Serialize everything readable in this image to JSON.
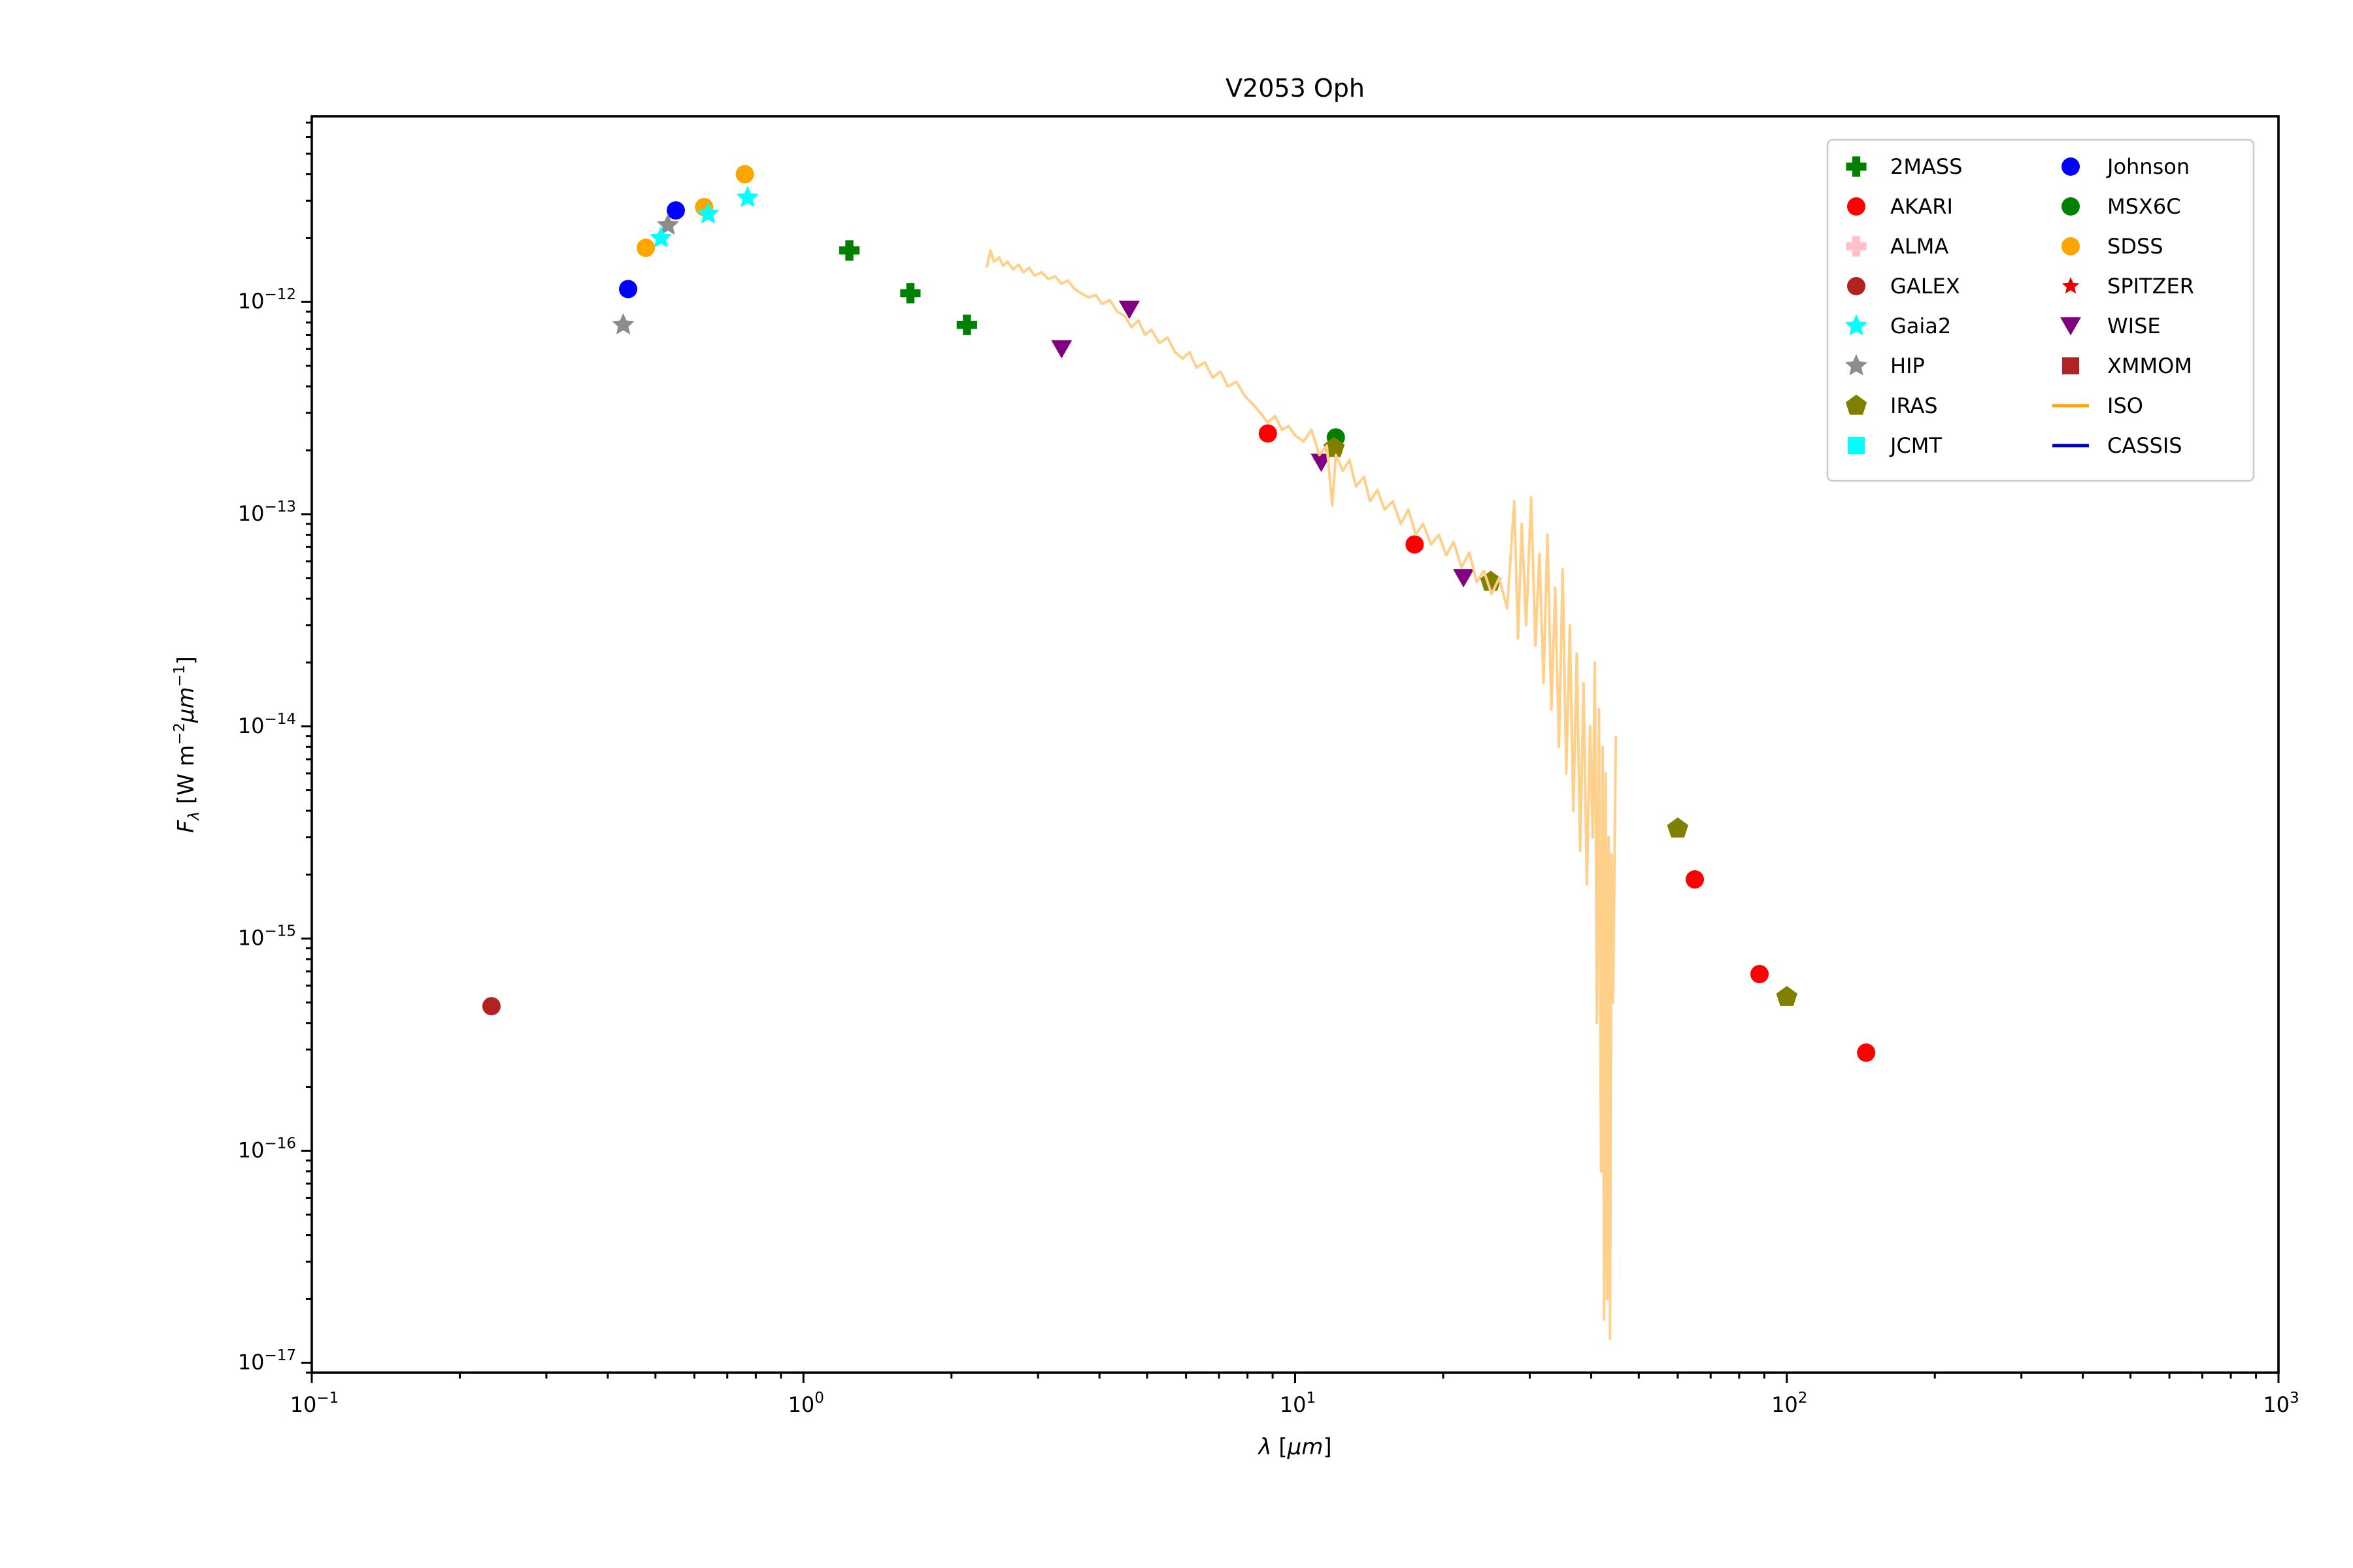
{
  "figure": {
    "background": "#ffffff"
  },
  "chart_data": {
    "type": "scatter",
    "title": "V2053 Oph",
    "xlabel": "λ [μm]",
    "ylabel": "F_λ [W m^-2 μm^-1]",
    "xlabel_parts": [
      {
        "t": "λ",
        "i": true
      },
      {
        "t": " ["
      },
      {
        "t": "μm",
        "i": true
      },
      {
        "t": "]"
      }
    ],
    "ylabel_parts": [
      {
        "t": "F",
        "i": true
      },
      {
        "t": "λ",
        "i": true,
        "pos": "sub"
      },
      {
        "t": " [W m"
      },
      {
        "t": "−2",
        "pos": "sup"
      },
      {
        "t": "μm",
        "i": true
      },
      {
        "t": "−1",
        "pos": "sup"
      },
      {
        "t": "]"
      }
    ],
    "xlim": [
      0.1,
      1000
    ],
    "ylim": [
      9e-18,
      7.5e-12
    ],
    "x_tick_exponents": [
      -1,
      0,
      1,
      2,
      3
    ],
    "y_tick_exponents": [
      -12,
      -13,
      -14,
      -15,
      -16,
      -17
    ],
    "grid": false,
    "legend_position": "upper right",
    "legend_columns": 2,
    "series": [
      {
        "name": "2MASS",
        "marker": "plus",
        "color": "#008000",
        "z": 5,
        "points": [
          [
            1.24,
            1.75e-12
          ],
          [
            1.65,
            1.1e-12
          ],
          [
            2.15,
            7.8e-13
          ]
        ]
      },
      {
        "name": "AKARI",
        "marker": "circle",
        "color": "#ff0000",
        "z": 8,
        "points": [
          [
            8.8,
            2.4e-13
          ],
          [
            17.5,
            7.2e-14
          ],
          [
            65,
            1.9e-15
          ],
          [
            88,
            6.8e-16
          ],
          [
            145,
            2.9e-16
          ]
        ]
      },
      {
        "name": "ALMA",
        "marker": "plus",
        "color": "#ffc0cb",
        "z": 1,
        "points": []
      },
      {
        "name": "GALEX",
        "marker": "circle",
        "color": "#b22222",
        "z": 5,
        "points": [
          [
            0.232,
            4.8e-16
          ]
        ]
      },
      {
        "name": "Gaia2",
        "marker": "star",
        "color": "#00ffff",
        "z": 5,
        "points": [
          [
            0.513,
            2e-12
          ],
          [
            0.64,
            2.6e-12
          ],
          [
            0.77,
            3.1e-12
          ]
        ]
      },
      {
        "name": "HIP",
        "marker": "star",
        "color": "#8c8c8c",
        "z": 4,
        "points": [
          [
            0.43,
            7.8e-13
          ],
          [
            0.53,
            2.3e-12
          ]
        ]
      },
      {
        "name": "IRAS",
        "marker": "pentagon",
        "color": "#808000",
        "z": 9,
        "points": [
          [
            12,
            2.05e-13
          ],
          [
            25,
            4.8e-14
          ],
          [
            60,
            3.3e-15
          ],
          [
            100,
            5.3e-16
          ]
        ]
      },
      {
        "name": "JCMT",
        "marker": "square",
        "color": "#00ffff",
        "z": 1,
        "points": []
      },
      {
        "name": "Johnson",
        "marker": "circle",
        "color": "#0000ff",
        "z": 2,
        "points": [
          [
            0.44,
            1.15e-12
          ],
          [
            0.55,
            2.7e-12
          ]
        ]
      },
      {
        "name": "MSX6C",
        "marker": "circle",
        "color": "#008000",
        "z": 6,
        "points": [
          [
            12.1,
            2.3e-13
          ]
        ]
      },
      {
        "name": "SDSS",
        "marker": "circle",
        "color": "#ffa500",
        "z": 3,
        "points": [
          [
            0.478,
            1.8e-12
          ],
          [
            0.628,
            2.8e-12
          ],
          [
            0.76,
            4e-12
          ]
        ]
      },
      {
        "name": "SPITZER",
        "marker": "star-small",
        "color": "#e60000",
        "z": 1,
        "points": []
      },
      {
        "name": "WISE",
        "marker": "triangle-down",
        "color": "#800080",
        "z": 7,
        "points": [
          [
            3.35,
            6e-13
          ],
          [
            4.6,
            9.2e-13
          ],
          [
            11.3,
            1.75e-13
          ],
          [
            22,
            5e-14
          ]
        ]
      },
      {
        "name": "XMMOM",
        "marker": "square",
        "color": "#b22222",
        "z": 1,
        "points": []
      },
      {
        "name": "ISO",
        "marker": "line",
        "color": "#ffd08a",
        "legend_color": "#ffa500",
        "z": 10,
        "points": [
          [
            2.36,
            1.45e-12
          ],
          [
            2.4,
            1.75e-12
          ],
          [
            2.44,
            1.55e-12
          ],
          [
            2.5,
            1.62e-12
          ],
          [
            2.55,
            1.48e-12
          ],
          [
            2.6,
            1.55e-12
          ],
          [
            2.67,
            1.42e-12
          ],
          [
            2.74,
            1.5e-12
          ],
          [
            2.8,
            1.38e-12
          ],
          [
            2.88,
            1.45e-12
          ],
          [
            2.95,
            1.33e-12
          ],
          [
            3.05,
            1.38e-12
          ],
          [
            3.15,
            1.28e-12
          ],
          [
            3.25,
            1.32e-12
          ],
          [
            3.35,
            1.22e-12
          ],
          [
            3.45,
            1.26e-12
          ],
          [
            3.55,
            1.16e-12
          ],
          [
            3.67,
            1.1e-12
          ],
          [
            3.8,
            1.05e-12
          ],
          [
            3.93,
            1.08e-12
          ],
          [
            4.05,
            9.8e-13
          ],
          [
            4.2,
            1.02e-12
          ],
          [
            4.35,
            9e-13
          ],
          [
            4.5,
            8.6e-13
          ],
          [
            4.65,
            7.6e-13
          ],
          [
            4.8,
            8.2e-13
          ],
          [
            4.95,
            7e-13
          ],
          [
            5.1,
            7.4e-13
          ],
          [
            5.3,
            6.4e-13
          ],
          [
            5.5,
            6.8e-13
          ],
          [
            5.7,
            5.8e-13
          ],
          [
            5.9,
            5.4e-13
          ],
          [
            6.1,
            5.8e-13
          ],
          [
            6.3,
            4.9e-13
          ],
          [
            6.55,
            5.2e-13
          ],
          [
            6.8,
            4.4e-13
          ],
          [
            7.05,
            4.7e-13
          ],
          [
            7.3,
            4e-13
          ],
          [
            7.6,
            4.2e-13
          ],
          [
            7.9,
            3.6e-13
          ],
          [
            8.2,
            3.3e-13
          ],
          [
            8.5,
            3e-13
          ],
          [
            8.8,
            2.7e-13
          ],
          [
            9.1,
            2.9e-13
          ],
          [
            9.4,
            2.5e-13
          ],
          [
            9.7,
            2.6e-13
          ],
          [
            10.0,
            2.35e-13
          ],
          [
            10.4,
            2.2e-13
          ],
          [
            10.8,
            2.5e-13
          ],
          [
            11.2,
            1.9e-13
          ],
          [
            11.6,
            2.1e-13
          ],
          [
            11.9,
            1.1e-13
          ],
          [
            12.1,
            1.9e-13
          ],
          [
            12.5,
            1.6e-13
          ],
          [
            12.9,
            1.8e-13
          ],
          [
            13.3,
            1.35e-13
          ],
          [
            13.8,
            1.5e-13
          ],
          [
            14.2,
            1.15e-13
          ],
          [
            14.7,
            1.3e-13
          ],
          [
            15.2,
            1.05e-13
          ],
          [
            15.8,
            1.15e-13
          ],
          [
            16.4,
            9e-14
          ],
          [
            17.0,
            1.05e-13
          ],
          [
            17.6,
            8e-14
          ],
          [
            18.2,
            9e-14
          ],
          [
            18.9,
            7.2e-14
          ],
          [
            19.6,
            8e-14
          ],
          [
            20.3,
            6.4e-14
          ],
          [
            21.0,
            7.4e-14
          ],
          [
            21.8,
            5.6e-14
          ],
          [
            22.6,
            6.6e-14
          ],
          [
            23.4,
            4.8e-14
          ],
          [
            24.2,
            5.4e-14
          ],
          [
            25.1,
            4.2e-14
          ],
          [
            26.0,
            5e-14
          ],
          [
            27.0,
            3.6e-14
          ],
          [
            27.9,
            1.15e-13
          ],
          [
            28.4,
            2.6e-14
          ],
          [
            28.9,
            9e-14
          ],
          [
            29.5,
            3e-14
          ],
          [
            30.2,
            1.2e-13
          ],
          [
            30.8,
            2.4e-14
          ],
          [
            31.4,
            6.5e-14
          ],
          [
            32.0,
            1.6e-14
          ],
          [
            32.6,
            8e-14
          ],
          [
            33.2,
            1.2e-14
          ],
          [
            33.8,
            4.5e-14
          ],
          [
            34.4,
            8e-15
          ],
          [
            35.0,
            5.5e-14
          ],
          [
            35.6,
            6e-15
          ],
          [
            36.2,
            3e-14
          ],
          [
            36.8,
            4e-15
          ],
          [
            37.4,
            2.2e-14
          ],
          [
            38.0,
            2.6e-15
          ],
          [
            38.6,
            1.6e-14
          ],
          [
            39.2,
            1.8e-15
          ],
          [
            39.8,
            1e-14
          ],
          [
            40.3,
            3e-15
          ],
          [
            40.7,
            2e-14
          ],
          [
            41.1,
            4e-16
          ],
          [
            41.5,
            1.2e-14
          ],
          [
            41.9,
            8e-17
          ],
          [
            42.2,
            8e-15
          ],
          [
            42.5,
            1.6e-17
          ],
          [
            42.8,
            6e-15
          ],
          [
            43.1,
            2e-17
          ],
          [
            43.4,
            3e-15
          ],
          [
            43.7,
            1.3e-17
          ],
          [
            44.0,
            2.5e-15
          ],
          [
            44.3,
            5e-16
          ],
          [
            44.6,
            2e-15
          ],
          [
            44.9,
            9e-15
          ]
        ]
      },
      {
        "name": "CASSIS",
        "marker": "line",
        "color": "#0000cc",
        "legend_color": "#0000cc",
        "z": 1,
        "points": []
      }
    ]
  }
}
